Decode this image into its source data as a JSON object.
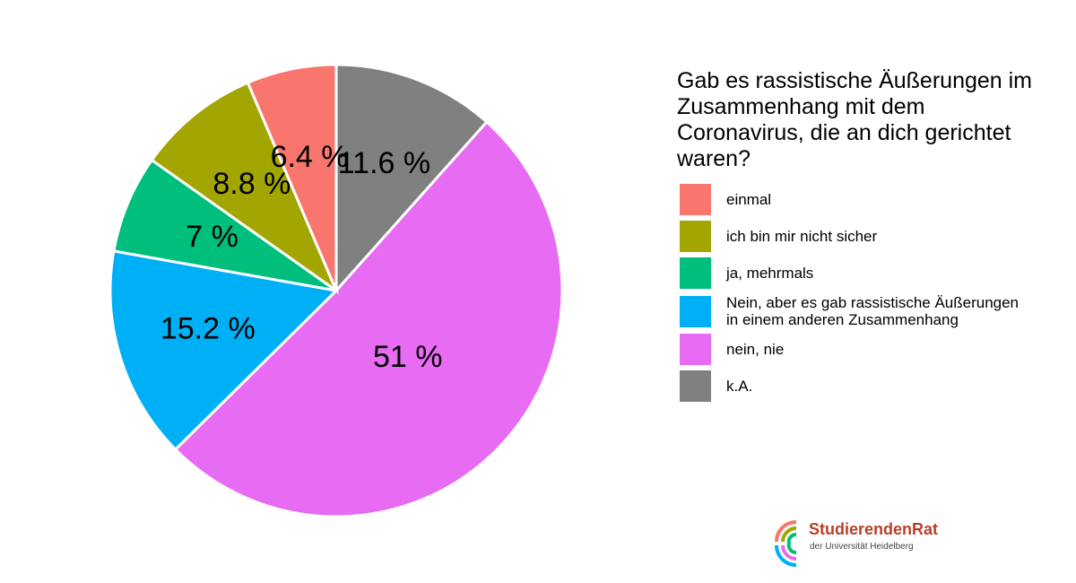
{
  "chart_data": {
    "type": "pie",
    "title": "Gab es rassistische Äußerungen im Zusammenhang mit dem Coronavirus, die an dich gerichtet waren?",
    "categories": [
      "einmal",
      "ich bin mir nicht sicher",
      "ja, mehrmals",
      "Nein, aber es gab rassistische Äußerungen in einem anderen Zusammenhang",
      "nein, nie",
      "k.A."
    ],
    "values": [
      6.4,
      8.8,
      7,
      15.2,
      51,
      11.6
    ],
    "value_labels": [
      "6.4 %",
      "8.8 %",
      "7 %",
      "15.2 %",
      "51 %",
      "11.6 %"
    ],
    "colors": [
      "#f8766d",
      "#a3a500",
      "#00bf7d",
      "#00b0f6",
      "#e76bf3",
      "#808080"
    ]
  },
  "logo": {
    "name": "StudierendenRat",
    "subtitle": "der Universität Heidelberg"
  }
}
